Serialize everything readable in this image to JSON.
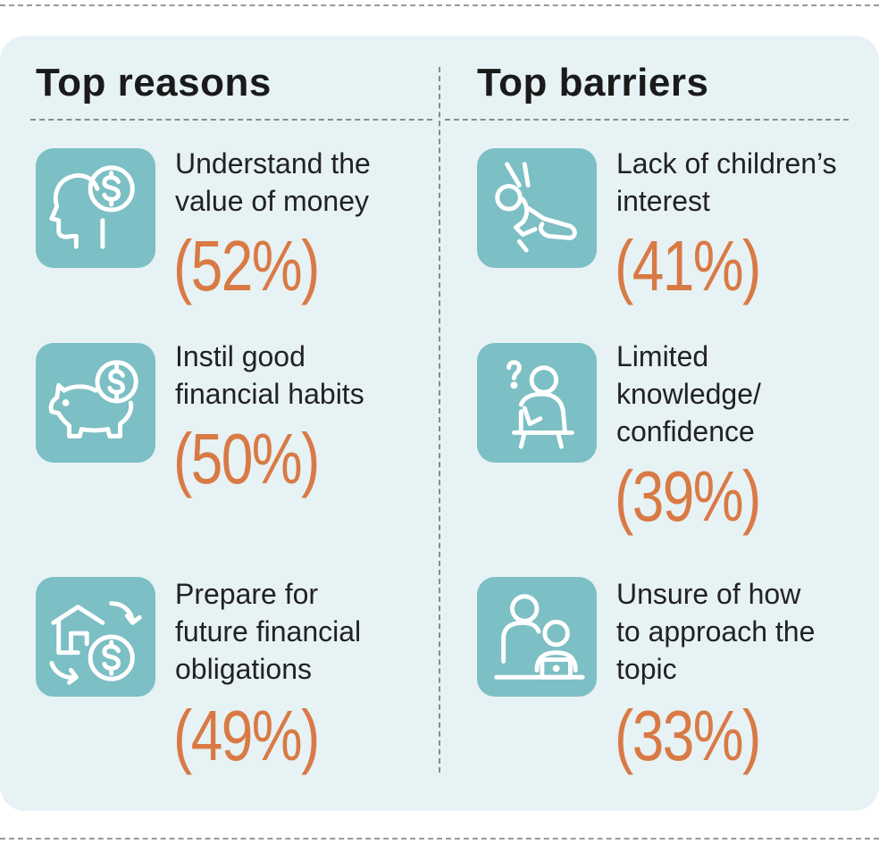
{
  "reasons": {
    "heading": "Top reasons",
    "items": [
      {
        "icon": "head-dollar-icon",
        "label": "Understand the\nvalue of money",
        "pct": "(52%)"
      },
      {
        "icon": "piggy-bank-icon",
        "label": "Instil good\nfinancial habits",
        "pct": "(50%)"
      },
      {
        "icon": "house-dollar-cycle-icon",
        "label": "Prepare for\nfuture financial\nobligations",
        "pct": "(49%)"
      }
    ]
  },
  "barriers": {
    "heading": "Top barriers",
    "items": [
      {
        "icon": "child-swing-icon",
        "label": "Lack of children’s\ninterest",
        "pct": "(41%)"
      },
      {
        "icon": "thinking-person-icon",
        "label": "Limited\nknowledge/\nconfidence",
        "pct": "(39%)"
      },
      {
        "icon": "person-laptop-icon",
        "label": "Unsure of how\nto approach the\ntopic",
        "pct": "(33%)"
      }
    ]
  },
  "colors": {
    "panel": "#e7f2f4",
    "icon_bg": "#7cbfc4",
    "accent": "#d97a45"
  }
}
